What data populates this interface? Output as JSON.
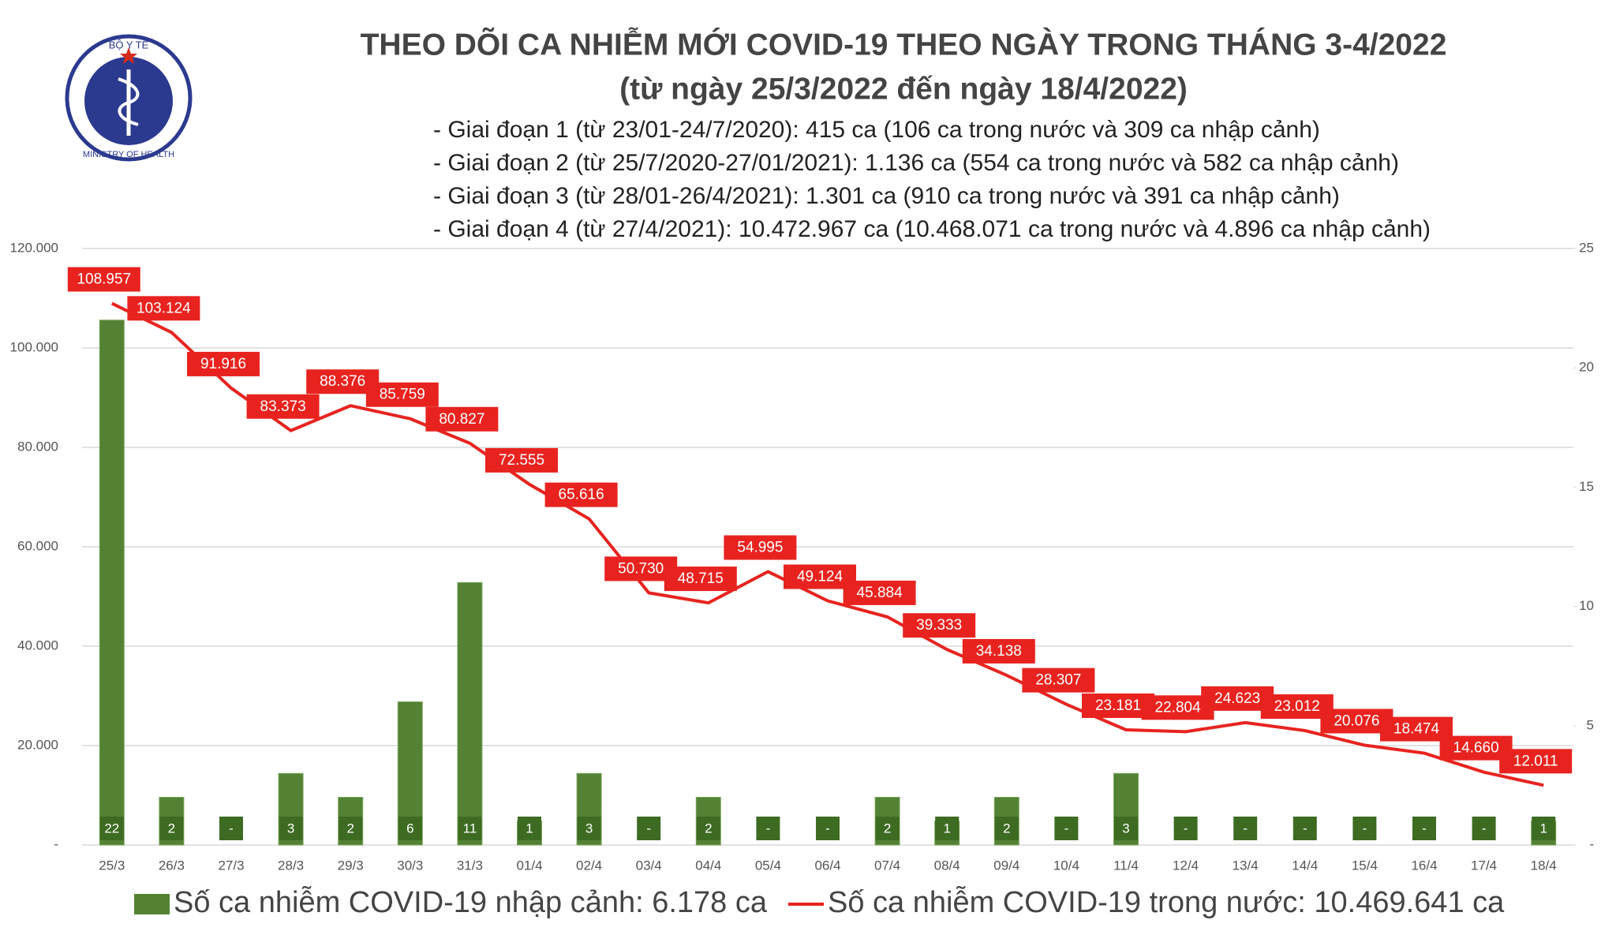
{
  "logo": {
    "top": "BỘ Y TẾ",
    "bottom": "MINISTRY OF HEALTH"
  },
  "chart_data": {
    "type": "bar",
    "title": "THEO DÕI CA NHIỄM MỚI COVID-19 THEO NGÀY TRONG THÁNG 3-4/2022",
    "subtitle": "(từ ngày 25/3/2022 đến ngày 18/4/2022)",
    "annotations": [
      "- Giai đoạn 1 (từ 23/01-24/7/2020): 415 ca (106 ca trong nước và 309 ca nhập cảnh)",
      "- Giai đoạn 2 (từ 25/7/2020-27/01/2021): 1.136 ca (554 ca trong nước và 582 ca nhập cảnh)",
      "- Giai đoạn 3 (từ 28/01-26/4/2021): 1.301 ca (910 ca trong nước và 391 ca nhập cảnh)",
      "- Giai đoạn 4 (từ 27/4/2021): 10.472.967 ca (10.468.071 ca trong nước và 4.896 ca nhập cảnh)"
    ],
    "categories": [
      "25/3",
      "26/3",
      "27/3",
      "28/3",
      "29/3",
      "30/3",
      "31/3",
      "01/4",
      "02/4",
      "03/4",
      "04/4",
      "05/4",
      "06/4",
      "07/4",
      "08/4",
      "09/4",
      "10/4",
      "11/4",
      "12/4",
      "13/4",
      "14/4",
      "15/4",
      "16/4",
      "17/4",
      "18/4"
    ],
    "series": [
      {
        "name": "Số ca nhiễm COVID-19 nhập cảnh: 6.178 ca",
        "type": "bar",
        "axis": "y2",
        "color": "#548235",
        "values": [
          22,
          2,
          0,
          3,
          2,
          6,
          11,
          1,
          3,
          0,
          2,
          0,
          0,
          2,
          1,
          2,
          0,
          3,
          0,
          0,
          0,
          0,
          0,
          0,
          1
        ],
        "value_labels": [
          "22",
          "2",
          "-",
          "3",
          "2",
          "6",
          "11",
          "1",
          "3",
          "-",
          "2",
          "-",
          "-",
          "2",
          "1",
          "2",
          "-",
          "3",
          "-",
          "-",
          "-",
          "-",
          "-",
          "-",
          "1"
        ]
      },
      {
        "name": "Số ca nhiễm COVID-19 trong nước: 10.469.641 ca",
        "type": "line",
        "color": "#e8231f",
        "values": [
          108957,
          103124,
          91916,
          83373,
          88376,
          85759,
          80827,
          72555,
          65616,
          50730,
          48715,
          54995,
          49124,
          45884,
          39333,
          34138,
          28307,
          23181,
          22804,
          24623,
          23012,
          20076,
          18474,
          14660,
          12011
        ],
        "value_labels": [
          "108.957",
          "103.124",
          "91.916",
          "83.373",
          "88.376",
          "85.759",
          "80.827",
          "72.555",
          "65.616",
          "50.730",
          "48.715",
          "54.995",
          "49.124",
          "45.884",
          "39.333",
          "34.138",
          "28.307",
          "23.181",
          "22.804",
          "24.623",
          "23.012",
          "20.076",
          "18.474",
          "14.660",
          "12.011"
        ]
      }
    ],
    "ylim": [
      0,
      120000
    ],
    "yticks": [
      {
        "value": 0,
        "label": "-"
      },
      {
        "value": 20000,
        "label": "20.000"
      },
      {
        "value": 40000,
        "label": "40.000"
      },
      {
        "value": 60000,
        "label": "60.000"
      },
      {
        "value": 80000,
        "label": "80.000"
      },
      {
        "value": 100000,
        "label": "100.000"
      },
      {
        "value": 120000,
        "label": "120.000"
      }
    ],
    "y2lim": [
      0,
      25
    ],
    "y2ticks": [
      {
        "value": 0,
        "label": "-"
      },
      5,
      10,
      15,
      20,
      25
    ],
    "grid": true,
    "legend": "bottom"
  }
}
